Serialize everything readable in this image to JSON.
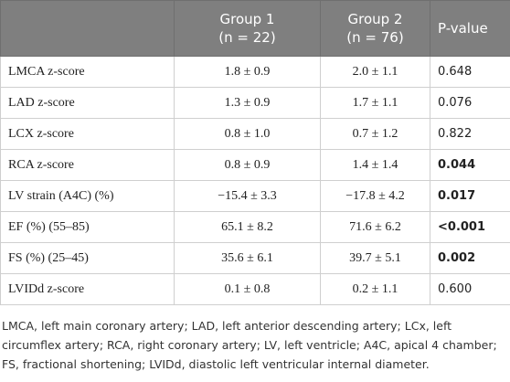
{
  "table": {
    "header": [
      {
        "line1": "",
        "line2": ""
      },
      {
        "line1": "Group 1",
        "line2": "(n = 22)"
      },
      {
        "line1": "Group 2",
        "line2": "(n = 76)"
      },
      {
        "line1": "P-value",
        "line2": ""
      }
    ],
    "rows": [
      {
        "cells": [
          "LMCA z-score",
          "1.8 ± 0.9",
          "2.0 ± 1.1",
          "0.648"
        ],
        "bold": false
      },
      {
        "cells": [
          "LAD z-score",
          "1.3 ± 0.9",
          "1.7 ± 1.1",
          "0.076"
        ],
        "bold": false
      },
      {
        "cells": [
          "LCX z-score",
          "0.8 ± 1.0",
          "0.7 ± 1.2",
          "0.822"
        ],
        "bold": false
      },
      {
        "cells": [
          "RCA z-score",
          "0.8 ± 0.9",
          "1.4 ± 1.4",
          "0.044"
        ],
        "bold": true
      },
      {
        "cells": [
          "LV strain (A4C) (%)",
          "−15.4 ± 3.3",
          "−17.8 ± 4.2",
          "0.017"
        ],
        "bold": true
      },
      {
        "cells": [
          "EF (%) (55–85)",
          "65.1 ± 8.2",
          "71.6 ± 6.2",
          "<0.001"
        ],
        "bold": true
      },
      {
        "cells": [
          "FS (%) (25–45)",
          "35.6 ± 6.1",
          "39.7 ± 5.1",
          "0.002"
        ],
        "bold": true
      },
      {
        "cells": [
          "LVIDd z-score",
          "0.1 ± 0.8",
          "0.2 ± 1.1",
          "0.600"
        ],
        "bold": false
      }
    ]
  },
  "footnote": "LMCA, left main coronary artery; LAD, left anterior descending artery; LCx, left circumflex artery; RCA, right coronary artery; LV, left ventricle; A4C, apical 4 chamber; FS, fractional shortening; LVIDd, diastolic left ventricular internal diameter."
}
